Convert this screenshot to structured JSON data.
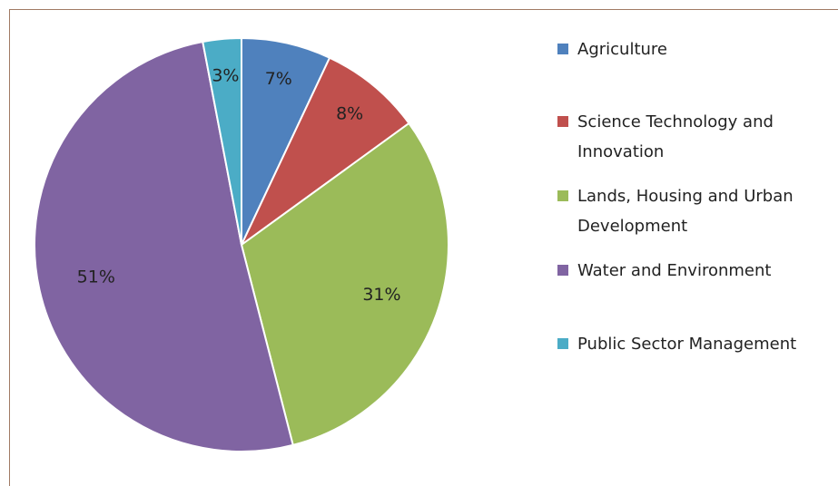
{
  "chart_data": {
    "type": "pie",
    "categories": [
      "Agriculture",
      "Science Technology and Innovation",
      "Lands, Housing and Urban Development",
      "Water and Environment",
      "Public Sector Management"
    ],
    "values": [
      7,
      8,
      31,
      51,
      3
    ],
    "value_labels": [
      "7%",
      "8%",
      "31%",
      "51%",
      "3%"
    ],
    "colors": [
      "#4f81bd",
      "#c0504d",
      "#9bbb59",
      "#8064a2",
      "#4bacc6"
    ],
    "legend": "right"
  }
}
